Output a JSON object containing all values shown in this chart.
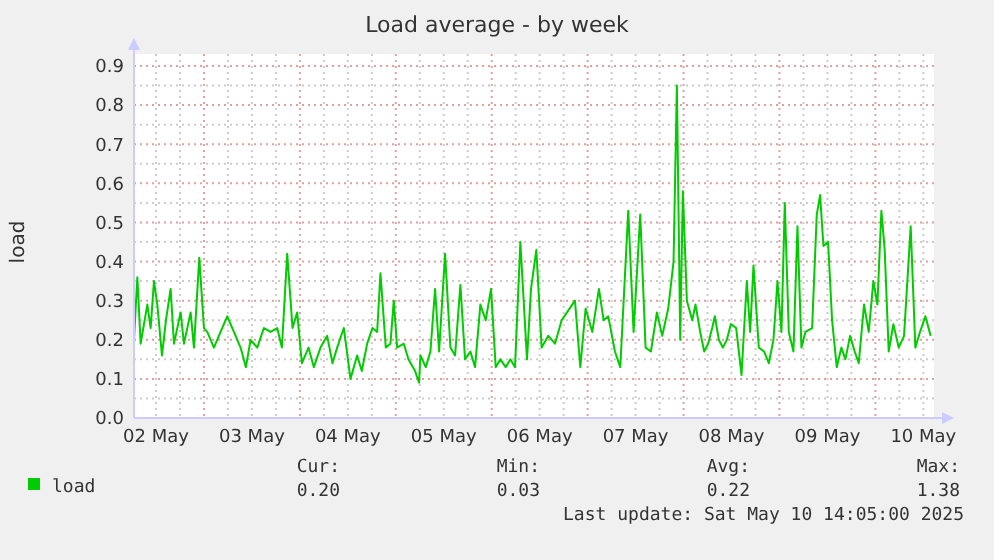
{
  "chart_data": {
    "type": "line",
    "title": "Load average - by week",
    "ylabel": "load",
    "xlim": [
      "2025-05-02T06:30",
      "2025-05-10T14:40"
    ],
    "xticks": [
      {
        "value": "2025-05-02T12:00",
        "label": "02 May"
      },
      {
        "value": "2025-05-03T12:00",
        "label": "03 May"
      },
      {
        "value": "2025-05-04T12:00",
        "label": "04 May"
      },
      {
        "value": "2025-05-05T12:00",
        "label": "05 May"
      },
      {
        "value": "2025-05-06T12:00",
        "label": "06 May"
      },
      {
        "value": "2025-05-07T12:00",
        "label": "07 May"
      },
      {
        "value": "2025-05-08T12:00",
        "label": "08 May"
      },
      {
        "value": "2025-05-09T12:00",
        "label": "09 May"
      },
      {
        "value": "2025-05-10T12:00",
        "label": "10 May"
      }
    ],
    "ylim": [
      0,
      0.9
    ],
    "yticks": [
      {
        "value": 0,
        "label": "0.0"
      },
      0.1,
      0.2,
      0.3,
      0.4,
      0.5,
      0.6,
      0.7,
      0.8,
      0.9
    ],
    "grid": true,
    "legend": "bottom",
    "marker": "none",
    "line_style": "solid",
    "x": [
      "2025-05-02T06:30",
      "2025-05-02T07:20",
      "2025-05-02T08:10",
      "2025-05-02T09:50",
      "2025-05-02T10:40",
      "2025-05-02T11:30",
      "2025-05-02T12:20",
      "2025-05-02T13:30",
      "2025-05-02T14:30",
      "2025-05-02T15:40",
      "2025-05-02T16:30",
      "2025-05-02T18:10",
      "2025-05-02T19:00",
      "2025-05-02T20:40",
      "2025-05-02T21:30",
      "2025-05-02T22:50",
      "2025-05-03T00:00",
      "2025-05-03T00:50",
      "2025-05-03T02:30",
      "2025-05-03T04:10",
      "2025-05-03T05:50",
      "2025-05-03T07:30",
      "2025-05-03T09:10",
      "2025-05-03T10:30",
      "2025-05-03T11:40",
      "2025-05-03T13:20",
      "2025-05-03T15:00",
      "2025-05-03T16:40",
      "2025-05-03T18:20",
      "2025-05-03T19:30",
      "2025-05-03T20:50",
      "2025-05-03T22:10",
      "2025-05-03T23:20",
      "2025-05-04T00:30",
      "2025-05-04T02:10",
      "2025-05-04T03:30",
      "2025-05-04T05:10",
      "2025-05-04T06:50",
      "2025-05-04T08:10",
      "2025-05-04T09:20",
      "2025-05-04T11:00",
      "2025-05-04T12:40",
      "2025-05-04T14:20",
      "2025-05-04T15:30",
      "2025-05-04T16:50",
      "2025-05-04T18:10",
      "2025-05-04T19:20",
      "2025-05-04T20:10",
      "2025-05-04T21:30",
      "2025-05-04T22:40",
      "2025-05-04T23:30",
      "2025-05-05T00:20",
      "2025-05-05T02:00",
      "2025-05-05T03:10",
      "2025-05-05T04:50",
      "2025-05-05T05:50",
      "2025-05-05T06:10",
      "2025-05-05T07:30",
      "2025-05-05T08:40",
      "2025-05-05T09:50",
      "2025-05-05T10:50",
      "2025-05-05T12:20",
      "2025-05-05T13:40",
      "2025-05-05T14:50",
      "2025-05-05T16:10",
      "2025-05-05T17:20",
      "2025-05-05T18:40",
      "2025-05-05T19:50",
      "2025-05-05T21:10",
      "2025-05-05T22:30",
      "2025-05-05T23:50",
      "2025-05-06T01:00",
      "2025-05-06T02:10",
      "2025-05-06T03:30",
      "2025-05-06T04:40",
      "2025-05-06T05:50",
      "2025-05-06T07:10",
      "2025-05-06T08:50",
      "2025-05-06T09:50",
      "2025-05-06T11:10",
      "2025-05-06T12:30",
      "2025-05-06T14:10",
      "2025-05-06T15:50",
      "2025-05-06T17:30",
      "2025-05-06T18:50",
      "2025-05-06T20:50",
      "2025-05-06T22:10",
      "2025-05-06T23:30",
      "2025-05-07T01:10",
      "2025-05-07T02:50",
      "2025-05-07T04:00",
      "2025-05-07T05:10",
      "2025-05-07T06:50",
      "2025-05-07T08:10",
      "2025-05-07T10:10",
      "2025-05-07T11:30",
      "2025-05-07T13:10",
      "2025-05-07T14:30",
      "2025-05-07T15:50",
      "2025-05-07T17:20",
      "2025-05-07T18:40",
      "2025-05-07T20:10",
      "2025-05-07T21:30",
      "2025-05-07T22:20",
      "2025-05-07T23:10",
      "2025-05-07T23:50",
      "2025-05-08T00:50",
      "2025-05-08T02:10",
      "2025-05-08T03:00",
      "2025-05-08T04:10",
      "2025-05-08T05:10",
      "2025-05-08T06:10",
      "2025-05-08T07:10",
      "2025-05-08T07:50",
      "2025-05-08T08:50",
      "2025-05-08T09:50",
      "2025-05-08T10:50",
      "2025-05-08T11:50",
      "2025-05-08T13:10",
      "2025-05-08T14:30",
      "2025-05-08T15:50",
      "2025-05-08T16:40",
      "2025-05-08T17:30",
      "2025-05-08T18:50",
      "2025-05-08T20:10",
      "2025-05-08T21:20",
      "2025-05-08T22:30",
      "2025-05-08T23:30",
      "2025-05-09T00:30",
      "2025-05-09T01:20",
      "2025-05-09T02:20",
      "2025-05-09T03:30",
      "2025-05-09T04:30",
      "2025-05-09T05:30",
      "2025-05-09T06:30",
      "2025-05-09T08:10",
      "2025-05-09T09:20",
      "2025-05-09T10:10",
      "2025-05-09T11:00",
      "2025-05-09T12:10",
      "2025-05-09T13:10",
      "2025-05-09T14:20",
      "2025-05-09T15:30",
      "2025-05-09T16:30",
      "2025-05-09T17:40",
      "2025-05-09T18:50",
      "2025-05-09T19:50",
      "2025-05-09T21:10",
      "2025-05-09T22:20",
      "2025-05-09T23:30",
      "2025-05-10T00:30",
      "2025-05-10T01:30",
      "2025-05-10T02:20",
      "2025-05-10T03:20",
      "2025-05-10T04:30",
      "2025-05-10T05:50",
      "2025-05-10T07:10",
      "2025-05-10T08:50",
      "2025-05-10T10:00",
      "2025-05-10T11:10",
      "2025-05-10T12:30",
      "2025-05-10T13:50"
    ],
    "series": [
      {
        "name": "load",
        "color": "#00cc00",
        "values": [
          0.2,
          0.36,
          0.19,
          0.29,
          0.23,
          0.35,
          0.29,
          0.16,
          0.25,
          0.33,
          0.19,
          0.27,
          0.19,
          0.27,
          0.18,
          0.41,
          0.23,
          0.22,
          0.18,
          0.22,
          0.26,
          0.22,
          0.18,
          0.13,
          0.2,
          0.18,
          0.23,
          0.22,
          0.23,
          0.18,
          0.42,
          0.23,
          0.27,
          0.14,
          0.18,
          0.13,
          0.18,
          0.21,
          0.14,
          0.18,
          0.23,
          0.1,
          0.16,
          0.12,
          0.19,
          0.23,
          0.22,
          0.37,
          0.18,
          0.19,
          0.3,
          0.18,
          0.19,
          0.15,
          0.12,
          0.09,
          0.16,
          0.13,
          0.17,
          0.33,
          0.17,
          0.42,
          0.18,
          0.16,
          0.34,
          0.15,
          0.17,
          0.13,
          0.29,
          0.25,
          0.33,
          0.13,
          0.15,
          0.13,
          0.15,
          0.13,
          0.45,
          0.15,
          0.33,
          0.43,
          0.18,
          0.21,
          0.19,
          0.25,
          0.27,
          0.3,
          0.13,
          0.28,
          0.22,
          0.33,
          0.25,
          0.26,
          0.17,
          0.13,
          0.53,
          0.22,
          0.52,
          0.18,
          0.17,
          0.27,
          0.21,
          0.28,
          0.4,
          0.85,
          0.2,
          0.58,
          0.3,
          0.25,
          0.29,
          0.22,
          0.17,
          0.19,
          0.23,
          0.26,
          0.2,
          0.18,
          0.2,
          0.24,
          0.23,
          0.11,
          0.35,
          0.22,
          0.39,
          0.18,
          0.17,
          0.14,
          0.2,
          0.35,
          0.22,
          0.55,
          0.22,
          0.17,
          0.49,
          0.18,
          0.22,
          0.23,
          0.52,
          0.57,
          0.44,
          0.45,
          0.25,
          0.13,
          0.18,
          0.15,
          0.21,
          0.17,
          0.14,
          0.29,
          0.22,
          0.35,
          0.29,
          0.53,
          0.43,
          0.17,
          0.24,
          0.18,
          0.21,
          0.49,
          0.18,
          0.22,
          0.26,
          0.21
        ]
      }
    ],
    "annotations": [
      "Cur:",
      "0.20",
      "Min:",
      "0.03",
      "Avg:",
      "0.22",
      "Max:",
      "1.38",
      "Last update: Sat May 10 14:05:00 2025"
    ]
  }
}
